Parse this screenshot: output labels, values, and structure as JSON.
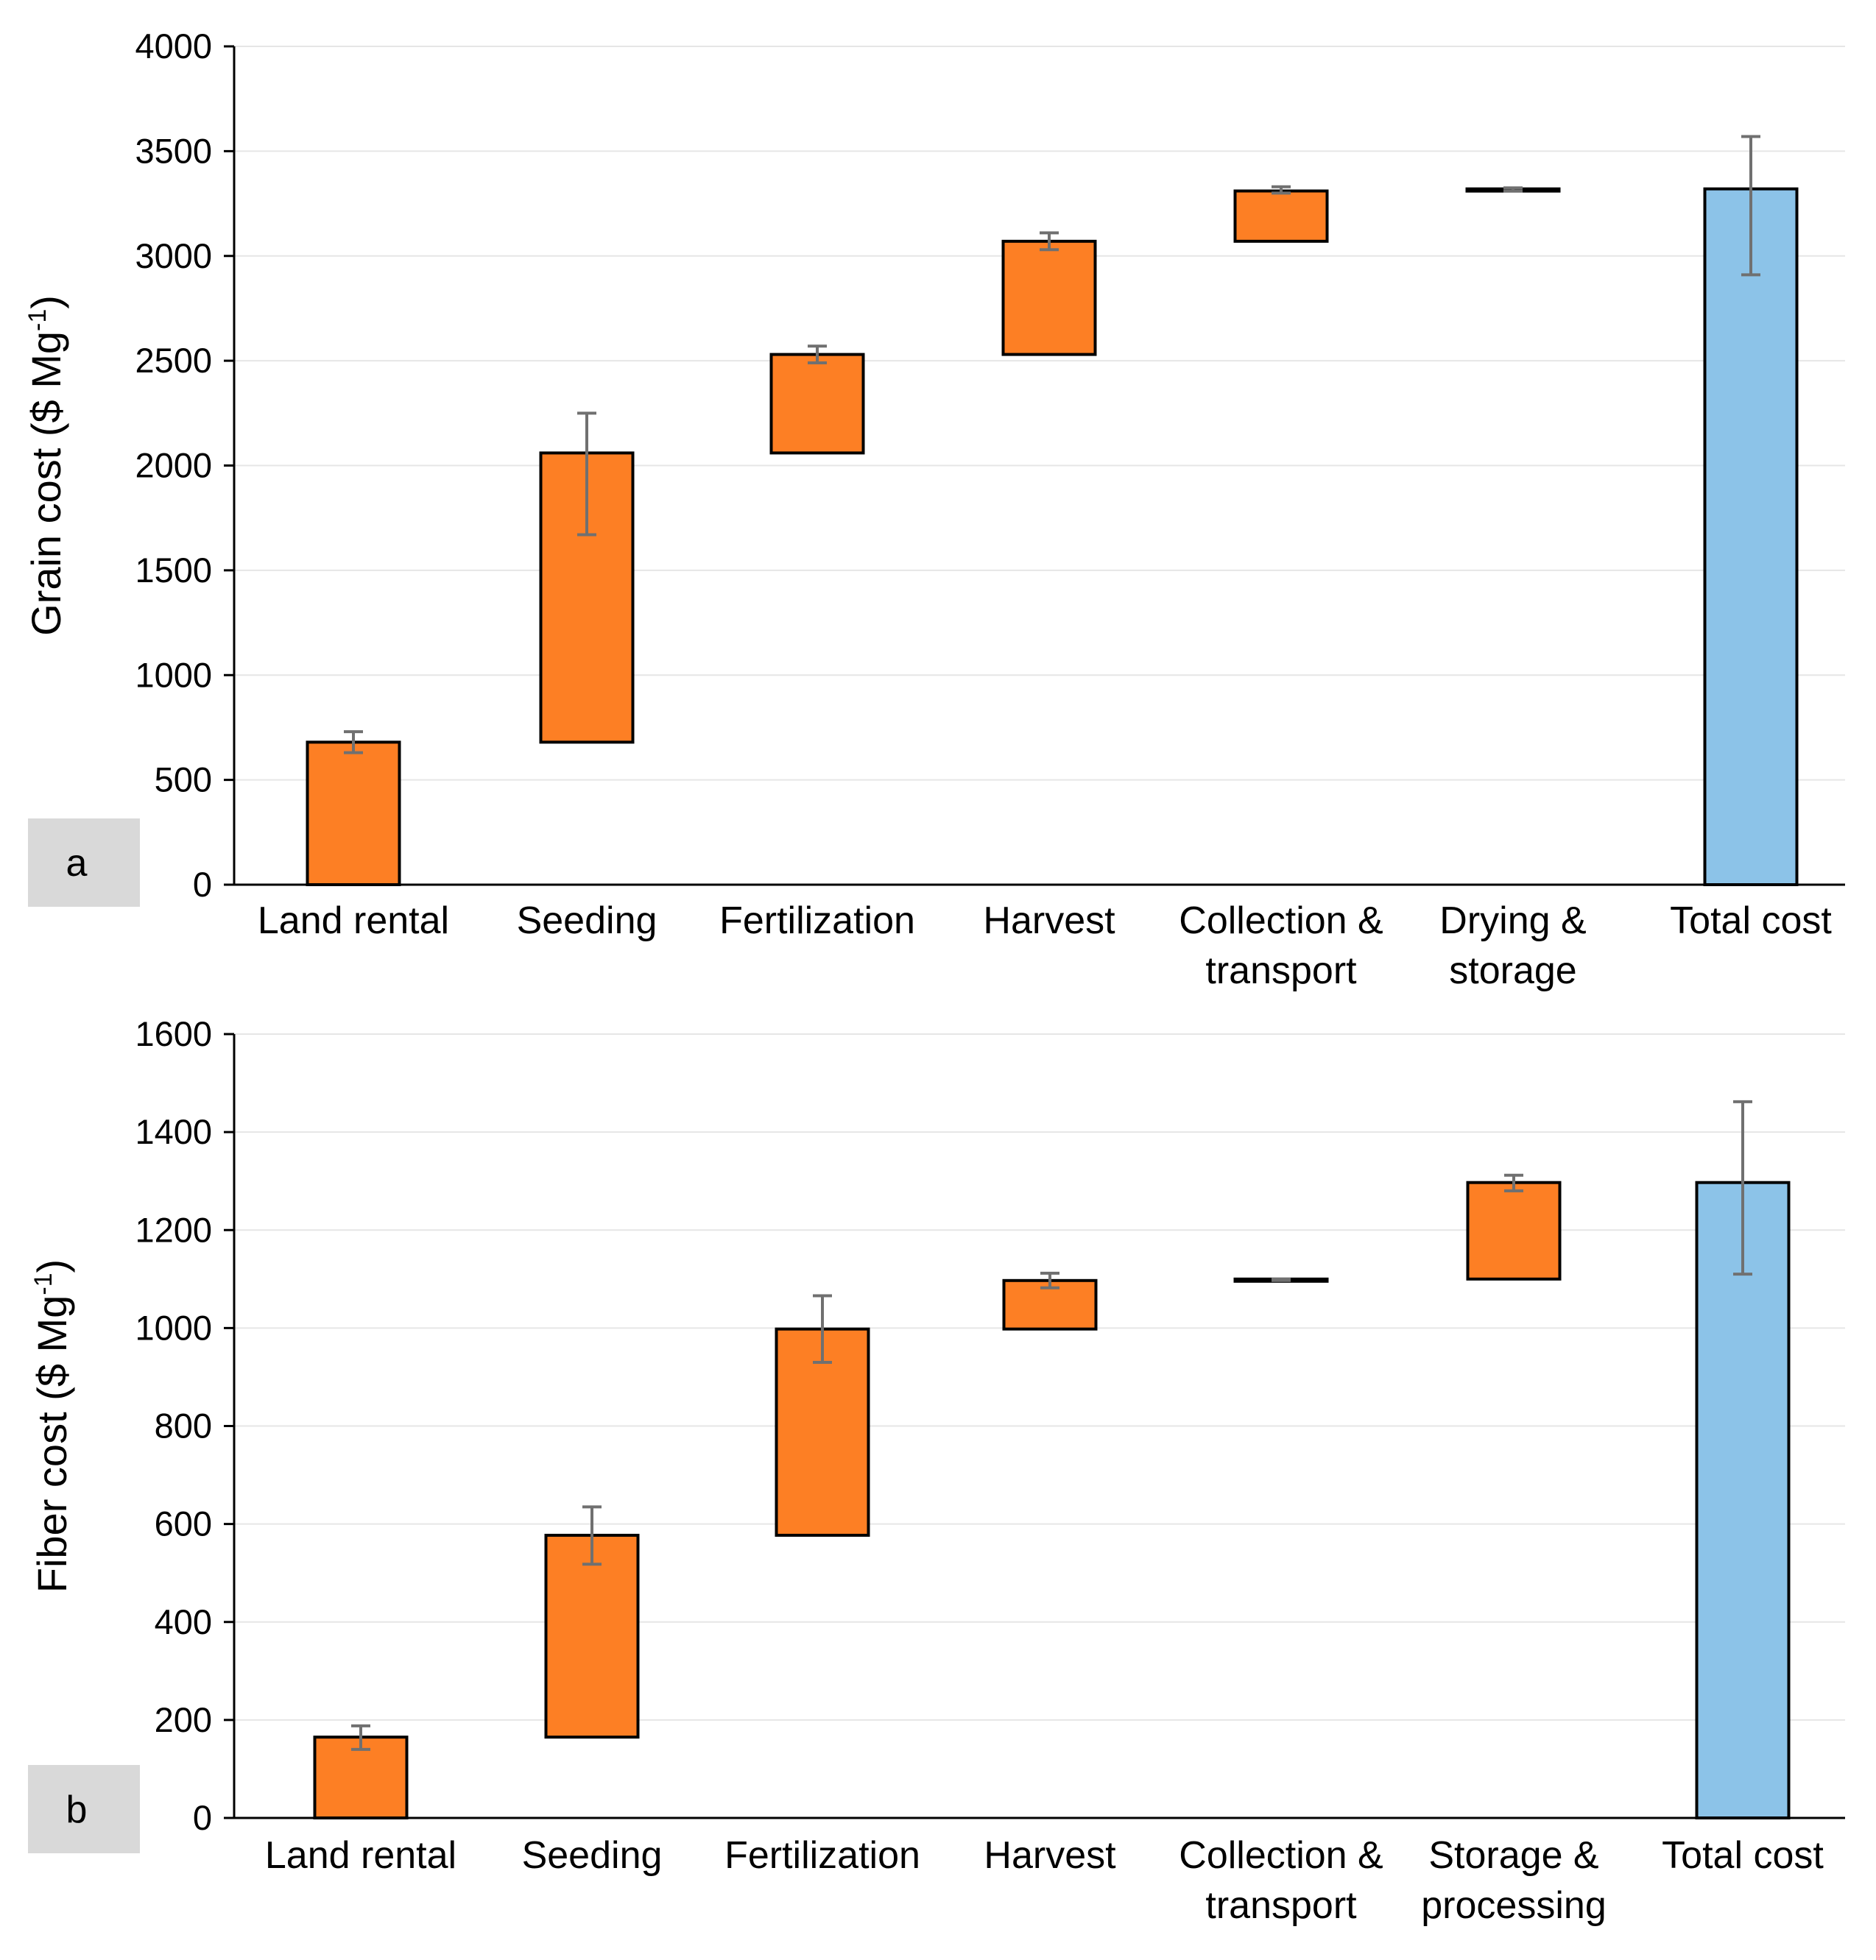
{
  "colors": {
    "step": "#FD7F24",
    "total": "#8CC3E8",
    "error": "#707070",
    "grid": "#E6E6E6",
    "panel_bg": "#D9D9D9"
  },
  "chart_data": [
    {
      "type": "waterfall",
      "panel_label": "a",
      "ylabel": "Grain cost ($ Mg",
      "ylabel_sup": "-1",
      "ylabel_close": ")",
      "ylim": [
        0,
        4000
      ],
      "yticks": [
        0,
        500,
        1000,
        1500,
        2000,
        2500,
        3000,
        3500,
        4000
      ],
      "categories": [
        [
          "Land rental"
        ],
        [
          "Seeding"
        ],
        [
          "Fertilization"
        ],
        [
          "Harvest"
        ],
        [
          "Collection &",
          "transport"
        ],
        [
          "Drying &",
          "storage"
        ],
        [
          "Total cost"
        ]
      ],
      "bars": [
        {
          "start": 0,
          "end": 680,
          "err_low": 630,
          "err_high": 730,
          "kind": "step"
        },
        {
          "start": 680,
          "end": 2060,
          "err_low": 1670,
          "err_high": 2250,
          "kind": "step"
        },
        {
          "start": 2060,
          "end": 2530,
          "err_low": 2490,
          "err_high": 2570,
          "kind": "step"
        },
        {
          "start": 2530,
          "end": 3070,
          "err_low": 3030,
          "err_high": 3110,
          "kind": "step"
        },
        {
          "start": 3070,
          "end": 3310,
          "err_low": 3300,
          "err_high": 3330,
          "kind": "step"
        },
        {
          "start": 3310,
          "end": 3320,
          "err_low": 3310,
          "err_high": 3325,
          "kind": "step"
        },
        {
          "start": 0,
          "end": 3320,
          "err_low": 2910,
          "err_high": 3570,
          "kind": "total"
        }
      ]
    },
    {
      "type": "waterfall",
      "panel_label": "b",
      "ylabel": "Fiber cost ($ Mg",
      "ylabel_sup": "-1",
      "ylabel_close": ")",
      "ylim": [
        0,
        1600
      ],
      "yticks": [
        0,
        200,
        400,
        600,
        800,
        1000,
        1200,
        1400,
        1600
      ],
      "categories": [
        [
          "Land rental"
        ],
        [
          "Seeding"
        ],
        [
          "Fertilization"
        ],
        [
          "Harvest"
        ],
        [
          "Collection &",
          "transport"
        ],
        [
          "Storage &",
          "processing"
        ],
        [
          "Total cost"
        ]
      ],
      "bars": [
        {
          "start": 0,
          "end": 165,
          "err_low": 140,
          "err_high": 188,
          "kind": "step"
        },
        {
          "start": 165,
          "end": 577,
          "err_low": 518,
          "err_high": 635,
          "kind": "step"
        },
        {
          "start": 577,
          "end": 998,
          "err_low": 930,
          "err_high": 1066,
          "kind": "step"
        },
        {
          "start": 998,
          "end": 1097,
          "err_low": 1082,
          "err_high": 1112,
          "kind": "step"
        },
        {
          "start": 1097,
          "end": 1100,
          "err_low": 1097,
          "err_high": 1100,
          "kind": "step"
        },
        {
          "start": 1100,
          "end": 1297,
          "err_low": 1280,
          "err_high": 1312,
          "kind": "step"
        },
        {
          "start": 0,
          "end": 1297,
          "err_low": 1110,
          "err_high": 1462,
          "kind": "total"
        }
      ]
    }
  ]
}
